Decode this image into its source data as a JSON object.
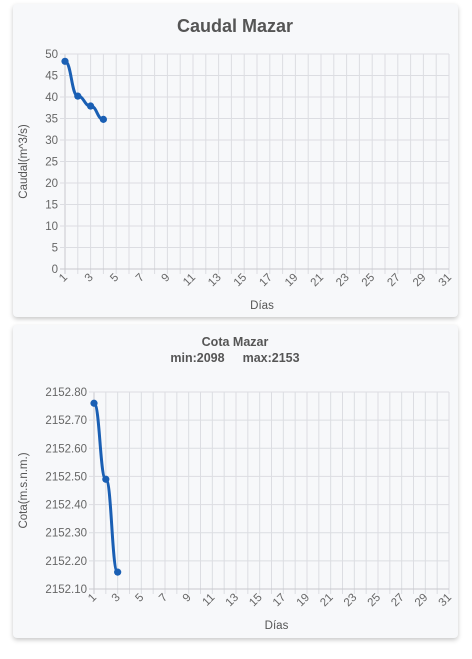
{
  "chart_data": [
    {
      "type": "line",
      "title": "Caudal Mazar",
      "subtitle_parts": [],
      "xlabel": "Días",
      "ylabel": "Caudal(m^3/s)",
      "x_tick_labels": [
        "1",
        "3",
        "5",
        "7",
        "9",
        "11",
        "13",
        "15",
        "17",
        "19",
        "21",
        "23",
        "25",
        "27",
        "29",
        "31"
      ],
      "y_tick_labels": [
        "50",
        "45",
        "40",
        "35",
        "30",
        "25",
        "20",
        "15",
        "10",
        "5",
        "0"
      ],
      "xlim": [
        1,
        31
      ],
      "ylim": [
        0,
        50
      ],
      "grid": true,
      "series": [
        {
          "x": [
            1,
            2,
            3,
            4
          ],
          "y": [
            48.3,
            40.2,
            37.9,
            34.8
          ],
          "color": "#1a5fb4"
        }
      ]
    },
    {
      "type": "line",
      "title": "Cota Mazar",
      "subtitle_parts": [
        "min:2098",
        "max:2153"
      ],
      "xlabel": "Días",
      "ylabel": "Cota(m.s.n.m.)",
      "x_tick_labels": [
        "1",
        "3",
        "5",
        "7",
        "9",
        "11",
        "13",
        "15",
        "17",
        "19",
        "21",
        "23",
        "25",
        "27",
        "29",
        "31"
      ],
      "y_tick_labels": [
        "2152.80",
        "2152.70",
        "2152.60",
        "2152.50",
        "2152.40",
        "2152.30",
        "2152.20",
        "2152.10"
      ],
      "xlim": [
        1,
        31
      ],
      "ylim": [
        2152.1,
        2152.8
      ],
      "grid": true,
      "series": [
        {
          "x": [
            1,
            2,
            3
          ],
          "y": [
            2152.76,
            2152.49,
            2152.16
          ],
          "color": "#1a5fb4"
        }
      ]
    }
  ]
}
